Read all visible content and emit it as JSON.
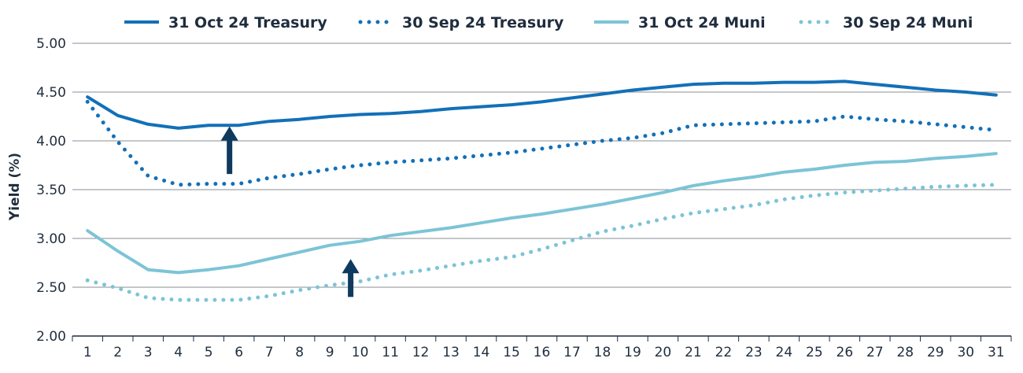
{
  "chart_data": {
    "type": "line",
    "ylabel": "Yield (%)",
    "xlabel": "",
    "ylim": [
      2.0,
      5.0
    ],
    "yticks": [
      "2.00",
      "2.50",
      "3.00",
      "3.50",
      "4.00",
      "4.50",
      "5.00"
    ],
    "categories": [
      "1",
      "2",
      "3",
      "4",
      "5",
      "6",
      "7",
      "8",
      "9",
      "10",
      "11",
      "12",
      "13",
      "14",
      "15",
      "16",
      "17",
      "18",
      "19",
      "20",
      "21",
      "22",
      "23",
      "24",
      "25",
      "26",
      "27",
      "28",
      "29",
      "30",
      "31"
    ],
    "grid": "horizontal",
    "legend_position": "top",
    "series": [
      {
        "name": "31 Oct 24 Treasury",
        "style": "solid",
        "color": "#1270b8",
        "values": [
          4.45,
          4.26,
          4.17,
          4.13,
          4.16,
          4.16,
          4.2,
          4.22,
          4.25,
          4.27,
          4.28,
          4.3,
          4.33,
          4.35,
          4.37,
          4.4,
          4.44,
          4.48,
          4.52,
          4.55,
          4.58,
          4.59,
          4.59,
          4.6,
          4.6,
          4.61,
          4.58,
          4.55,
          4.52,
          4.5,
          4.47
        ]
      },
      {
        "name": "30 Sep 24 Treasury",
        "style": "dotted",
        "color": "#1270b8",
        "values": [
          4.4,
          3.99,
          3.64,
          3.55,
          3.56,
          3.56,
          3.62,
          3.66,
          3.71,
          3.75,
          3.78,
          3.8,
          3.82,
          3.85,
          3.88,
          3.92,
          3.96,
          4.0,
          4.03,
          4.08,
          4.16,
          4.17,
          4.18,
          4.19,
          4.2,
          4.25,
          4.22,
          4.2,
          4.17,
          4.14,
          4.11
        ]
      },
      {
        "name": "31 Oct 24 Muni",
        "style": "solid",
        "color": "#7cc4d6",
        "values": [
          3.08,
          2.87,
          2.68,
          2.65,
          2.68,
          2.72,
          2.79,
          2.86,
          2.93,
          2.97,
          3.03,
          3.07,
          3.11,
          3.16,
          3.21,
          3.25,
          3.3,
          3.35,
          3.41,
          3.47,
          3.54,
          3.59,
          3.63,
          3.68,
          3.71,
          3.75,
          3.78,
          3.79,
          3.82,
          3.84,
          3.87
        ]
      },
      {
        "name": "30 Sep 24 Muni",
        "style": "dotted",
        "color": "#7cc4d6",
        "values": [
          2.57,
          2.49,
          2.39,
          2.37,
          2.37,
          2.37,
          2.41,
          2.47,
          2.52,
          2.56,
          2.63,
          2.67,
          2.72,
          2.77,
          2.81,
          2.89,
          2.98,
          3.07,
          3.13,
          3.2,
          3.26,
          3.3,
          3.34,
          3.4,
          3.44,
          3.47,
          3.49,
          3.51,
          3.53,
          3.54,
          3.55
        ]
      }
    ],
    "annotations": [
      {
        "type": "up-arrow",
        "x": "6",
        "y_from": 3.66,
        "y_to": 4.1,
        "color": "#0f3a5f"
      },
      {
        "type": "up-arrow",
        "x": "10",
        "y_from": 2.4,
        "y_to": 2.74,
        "color": "#0f3a5f"
      }
    ]
  }
}
